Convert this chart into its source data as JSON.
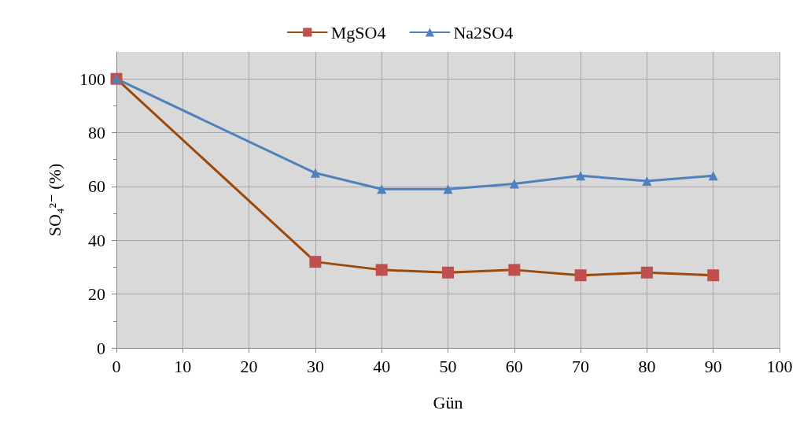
{
  "chart_data": {
    "type": "line",
    "xlabel": "Gün",
    "ylabel": "SO₄²⁻ (%)",
    "x": [
      0,
      30,
      40,
      50,
      60,
      70,
      80,
      90
    ],
    "series": [
      {
        "name": "MgSO4",
        "color": "#9c4a0c",
        "marker": "square",
        "values": [
          100,
          32,
          29,
          28,
          29,
          27,
          28,
          27
        ]
      },
      {
        "name": "Na2SO4",
        "color": "#4f81bd",
        "marker": "triangle",
        "values": [
          100,
          65,
          59,
          59,
          61,
          64,
          62,
          64
        ]
      }
    ],
    "xlim": [
      0,
      100
    ],
    "xticks": [
      0,
      10,
      20,
      30,
      40,
      50,
      60,
      70,
      80,
      90,
      100
    ],
    "ylim": [
      0,
      110
    ],
    "yticks": [
      0,
      20,
      40,
      60,
      80,
      100
    ],
    "grid": true,
    "legend": "top",
    "line_style": "solid"
  }
}
